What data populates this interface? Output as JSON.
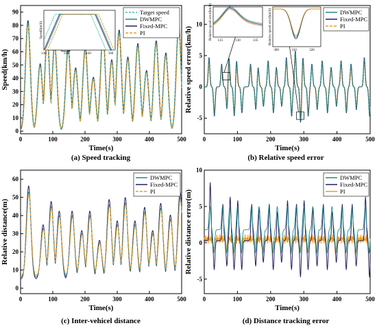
{
  "colors": {
    "target": "#3cb8a8",
    "dwmpc": "#1f8a8a",
    "fixed": "#23215e",
    "pi": "#f39a1e"
  },
  "chart_data": [
    {
      "type": "line",
      "caption": "(a) Speed tracking",
      "xlabel": "Time(s)",
      "ylabel": "Speed(km/h)",
      "xlim": [
        0,
        500
      ],
      "ylim": [
        -2,
        95
      ],
      "xticks": [
        0,
        100,
        200,
        300,
        400,
        500
      ],
      "yticks": [
        0,
        10,
        20,
        30,
        40,
        50,
        60,
        70,
        80,
        90
      ],
      "legend": [
        "Target speed",
        "DWMPC",
        "Fixed-MPC",
        "PI"
      ],
      "legend_position": "top-right",
      "peaks_x": [
        22,
        60,
        82,
        105,
        147,
        170,
        200,
        225,
        255,
        282,
        305,
        332,
        363,
        390,
        420,
        450,
        490
      ],
      "peaks_y": [
        82,
        50,
        70,
        65,
        62,
        47,
        62,
        40,
        73,
        53,
        75,
        55,
        65,
        45,
        67,
        58,
        79
      ],
      "inset": {
        "ylabel": "Speed(km/h)",
        "xticks": [
          130,
          140,
          150,
          160
        ],
        "xlim": [
          130,
          162
        ]
      }
    },
    {
      "type": "line",
      "caption": "(b) Relative speed error",
      "xlabel": "Time(s)",
      "ylabel": "Relative speed error(km/h)",
      "xlim": [
        0,
        500
      ],
      "ylim": [
        -7.5,
        13
      ],
      "xticks": [
        0,
        100,
        200,
        300,
        400,
        500
      ],
      "yticks": [
        -5,
        0,
        5,
        10
      ],
      "legend": [
        "DWMPC",
        "Fixed-MPC",
        "PI"
      ],
      "legend_position": "top-right",
      "peaks_x": [
        22,
        60,
        82,
        105,
        147,
        170,
        200,
        225,
        255,
        282,
        305,
        332,
        363,
        390,
        420,
        450,
        490
      ],
      "amp": [
        4.5,
        3.5,
        4.5,
        4,
        3.5,
        3,
        4,
        3,
        4.5,
        5.5,
        4.5,
        3.5,
        4,
        3,
        4,
        3.5,
        4.5
      ],
      "inset1": {
        "ylabel": "Relative speed error(km/h)",
        "xticks": [
          125,
          130,
          135
        ],
        "xlim": [
          123,
          137
        ]
      },
      "inset2": {
        "ylabel": "Relative speed error(km/h)",
        "xticks": [
          300,
          310,
          320
        ],
        "xlim": [
          298,
          325
        ]
      }
    },
    {
      "type": "line",
      "caption": "(c) Inter-vehicel distance",
      "xlabel": "Time(s)",
      "ylabel": "Relative distance(m)",
      "xlim": [
        0,
        500
      ],
      "ylim": [
        -3,
        65
      ],
      "xticks": [
        0,
        100,
        200,
        300,
        400,
        500
      ],
      "yticks": [
        0,
        10,
        20,
        30,
        40,
        50,
        60
      ],
      "legend": [
        "DWMPC",
        "Fixed-MPC",
        "PI"
      ],
      "legend_position": "top-right",
      "peaks_x": [
        25,
        70,
        95,
        120,
        160,
        190,
        215,
        245,
        275,
        300,
        325,
        355,
        385,
        410,
        435,
        465,
        495
      ],
      "peaks_y": [
        53,
        33,
        45,
        40,
        40,
        30,
        40,
        25,
        46,
        35,
        47,
        35,
        42,
        30,
        44,
        38,
        50
      ]
    },
    {
      "type": "line",
      "caption": "(d) Distance tracking error",
      "xlabel": "Time(s)",
      "ylabel": "Relative distance error(m)",
      "xlim": [
        0,
        500
      ],
      "ylim": [
        -7,
        10
      ],
      "xticks": [
        0,
        100,
        200,
        300,
        400,
        500
      ],
      "yticks": [
        -5,
        0,
        5,
        10
      ],
      "legend": [
        "DWMPC",
        "Fixed-MPC",
        "PI"
      ],
      "legend_position": "top-right",
      "peaks_x": [
        22,
        60,
        82,
        105,
        147,
        170,
        200,
        225,
        255,
        282,
        305,
        332,
        363,
        390,
        420,
        450,
        490
      ],
      "fixed_hi": [
        8,
        5,
        6,
        5.5,
        5,
        4.5,
        5,
        4,
        5.5,
        5,
        5.5,
        4.5,
        5,
        4,
        5,
        5,
        6
      ],
      "fixed_lo": [
        -4,
        -3.5,
        -4,
        -4,
        -3.5,
        -3,
        -4,
        -3,
        -4,
        -5,
        -4,
        -3.5,
        -4,
        -3,
        -4,
        -3.5,
        -5
      ]
    }
  ]
}
